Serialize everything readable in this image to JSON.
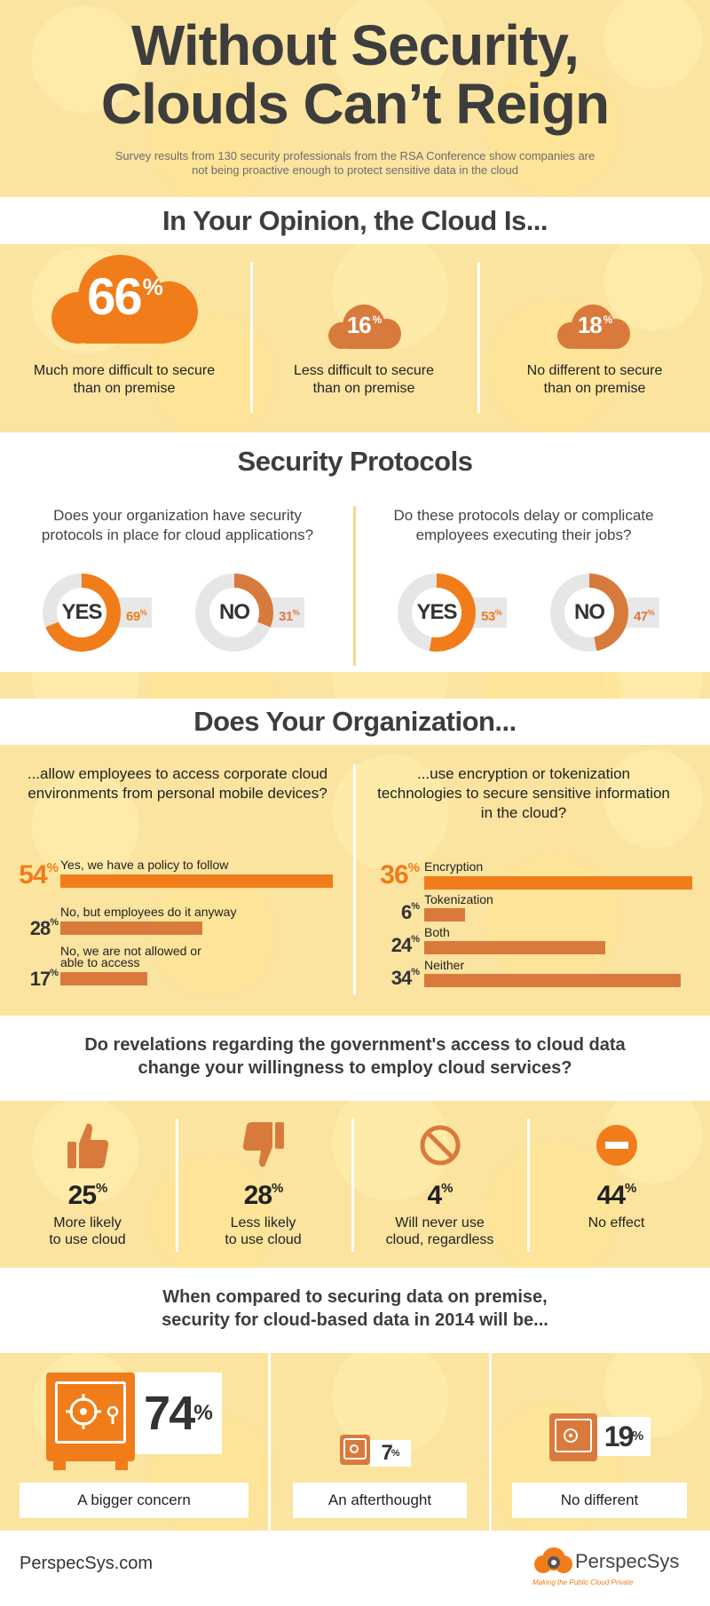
{
  "header": {
    "title_line1": "Without Security,",
    "title_line2": "Clouds Can’t Reign",
    "subtitle": "Survey results from 130 security professionals from the RSA Conference show companies are not being proactive enough to protect sensitive data in the cloud"
  },
  "opinion": {
    "heading": "In Your Opinion, the Cloud Is...",
    "items": [
      {
        "value": "66",
        "unit": "%",
        "label": "Much more difficult to secure than on premise"
      },
      {
        "value": "16",
        "unit": "%",
        "label": "Less difficult to secure than on premise"
      },
      {
        "value": "18",
        "unit": "%",
        "label": "No different to secure than on premise"
      }
    ]
  },
  "protocols": {
    "heading": "Security Protocols",
    "questions": [
      {
        "text": "Does your organization have security protocols in place for cloud applications?",
        "answers": [
          {
            "label": "YES",
            "value": "69",
            "unit": "%",
            "fraction": 0.69
          },
          {
            "label": "NO",
            "value": "31",
            "unit": "%",
            "fraction": 0.31
          }
        ]
      },
      {
        "text": "Do these protocols delay or complicate employees executing their jobs?",
        "answers": [
          {
            "label": "YES",
            "value": "53",
            "unit": "%",
            "fraction": 0.53
          },
          {
            "label": "NO",
            "value": "47",
            "unit": "%",
            "fraction": 0.47
          }
        ]
      }
    ]
  },
  "organization": {
    "heading": "Does Your Organization...",
    "left": {
      "question": "...allow employees to access corporate cloud environments from personal mobile devices?",
      "rows": [
        {
          "value": "54",
          "unit": "%",
          "label": "Yes, we have a policy to follow"
        },
        {
          "value": "28",
          "unit": "%",
          "label": "No, but employees do it anyway"
        },
        {
          "value": "17",
          "unit": "%",
          "label": "No, we are not allowed or able to access"
        }
      ]
    },
    "right": {
      "question": "...use encryption or tokenization technologies to secure sensitive information in the cloud?",
      "rows": [
        {
          "value": "36",
          "unit": "%",
          "label": "Encryption"
        },
        {
          "value": "6",
          "unit": "%",
          "label": "Tokenization"
        },
        {
          "value": "24",
          "unit": "%",
          "label": "Both"
        },
        {
          "value": "34",
          "unit": "%",
          "label": "Neither"
        }
      ]
    }
  },
  "government": {
    "heading_line1": "Do revelations regarding the government's access to cloud data",
    "heading_line2": "change your willingness to employ cloud services?",
    "items": [
      {
        "icon": "thumbs-up-icon",
        "value": "25",
        "unit": "%",
        "label_line1": "More likely",
        "label_line2": "to use cloud"
      },
      {
        "icon": "thumbs-down-icon",
        "value": "28",
        "unit": "%",
        "label_line1": "Less likely",
        "label_line2": "to use cloud"
      },
      {
        "icon": "prohibited-icon",
        "value": "4",
        "unit": "%",
        "label_line1": "Will never use",
        "label_line2": "cloud, regardless"
      },
      {
        "icon": "minus-circle-icon",
        "value": "44",
        "unit": "%",
        "label_line1": "No effect",
        "label_line2": ""
      }
    ]
  },
  "compare": {
    "heading_line1": "When compared to securing data on premise,",
    "heading_line2": "security for cloud-based data in 2014 will be...",
    "items": [
      {
        "icon": "safe-icon",
        "value": "74",
        "unit": "%",
        "label": "A bigger concern"
      },
      {
        "icon": "safe-icon",
        "value": "7",
        "unit": "%",
        "label": "An afterthought"
      },
      {
        "icon": "safe-icon",
        "value": "19",
        "unit": "%",
        "label": "No different"
      }
    ]
  },
  "footer": {
    "site": "PerspecSys.com",
    "brand": "PerspecSys",
    "tagline": "Making the Public Cloud Private"
  },
  "colors": {
    "orange": "#f07d1a",
    "rust": "#d97a3d",
    "cream": "#fbe3a0",
    "gray": "#e6e6e6"
  }
}
